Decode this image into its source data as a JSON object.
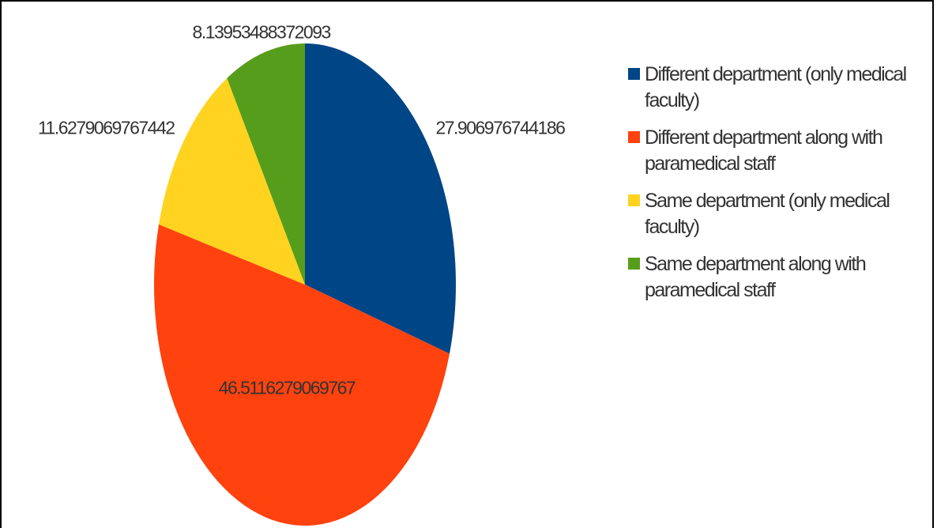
{
  "chart_data": {
    "type": "pie",
    "categories": [
      "Different department (only medical faculty)",
      "Different department along with paramedical staff",
      "Same department (only medical faculty)",
      "Same department along with paramedical staff"
    ],
    "values": [
      27.906976744186,
      46.5116279069767,
      11.6279069767442,
      8.13953488372093
    ],
    "colors": [
      "#004586",
      "#ff420e",
      "#ffd320",
      "#579d1c"
    ],
    "legend": "right"
  }
}
